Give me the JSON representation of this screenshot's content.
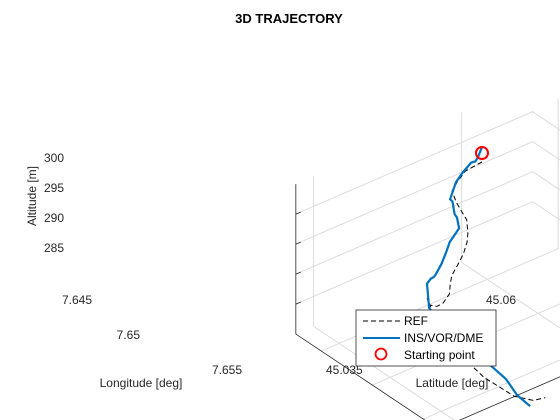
{
  "chart_data": {
    "type": "line",
    "title": "3D TRAJECTORY",
    "xlabel": "Latitude [deg]",
    "ylabel": "Longitude [deg]",
    "zlabel": "Altitude [m]",
    "x_ticks": [
      "45.035",
      "45.06"
    ],
    "y_ticks": [
      "7.645",
      "7.65",
      "7.655"
    ],
    "z_ticks": [
      "285",
      "290",
      "295",
      "300"
    ],
    "grid": true,
    "legend_position": "bottom-right",
    "legend": [
      "REF",
      "INS/VOR/DME",
      "Starting point"
    ],
    "colors": {
      "ref": "#000000",
      "ins": "#0072BD",
      "start": "#FF0000",
      "grid": "#dcdcdc",
      "axis": "#262626"
    },
    "series": [
      {
        "name": "REF",
        "style": "dashed",
        "points": [
          [
            45.06,
            7.6445,
            299
          ],
          [
            45.058,
            7.6449,
            299.6
          ],
          [
            45.056,
            7.6452,
            300.0
          ],
          [
            45.054,
            7.6456,
            299.6
          ],
          [
            45.052,
            7.6462,
            299.5
          ],
          [
            45.051,
            7.6472,
            299.2
          ],
          [
            45.0505,
            7.648,
            298.8
          ],
          [
            45.05,
            7.6488,
            298.5
          ],
          [
            45.049,
            7.6495,
            297.5
          ],
          [
            45.048,
            7.65,
            297.0
          ],
          [
            45.046,
            7.6508,
            296.8
          ],
          [
            45.044,
            7.6514,
            296.5
          ],
          [
            45.042,
            7.652,
            296.3
          ],
          [
            45.0405,
            7.6527,
            296.3
          ],
          [
            45.039,
            7.6535,
            296.2
          ],
          [
            45.037,
            7.654,
            296.0
          ],
          [
            45.0355,
            7.6543,
            296.5
          ],
          [
            45.034,
            7.6544,
            297.5
          ],
          [
            45.0335,
            7.6545,
            299.0
          ],
          [
            45.034,
            7.6548,
            296.5
          ],
          [
            45.036,
            7.6553,
            291.5
          ],
          [
            45.038,
            7.6558,
            288.0
          ],
          [
            45.04,
            7.6563,
            285.0
          ],
          [
            45.0415,
            7.6568,
            283.5
          ],
          [
            45.0425,
            7.6578,
            282.5
          ],
          [
            45.044,
            7.6588,
            282.3
          ],
          [
            45.045,
            7.6594,
            283.0
          ]
        ]
      },
      {
        "name": "INS/VOR/DME",
        "style": "solid",
        "points": [
          [
            45.06,
            7.6445,
            301.5
          ],
          [
            45.059,
            7.6447,
            300.5
          ],
          [
            45.058,
            7.645,
            300.5
          ],
          [
            45.057,
            7.6452,
            301.0
          ],
          [
            45.055,
            7.6455,
            300.5
          ],
          [
            45.053,
            7.646,
            300.3
          ],
          [
            45.051,
            7.6466,
            299.0
          ],
          [
            45.05,
            7.6474,
            300.0
          ],
          [
            45.049,
            7.6482,
            299.2
          ],
          [
            45.048,
            7.649,
            300.0
          ],
          [
            45.047,
            7.6498,
            299.5
          ],
          [
            45.045,
            7.6505,
            300.0
          ],
          [
            45.043,
            7.6512,
            300.5
          ],
          [
            45.041,
            7.652,
            300.5
          ],
          [
            45.039,
            7.6527,
            300.2
          ],
          [
            45.037,
            7.6533,
            300.0
          ],
          [
            45.036,
            7.6537,
            300.5
          ],
          [
            45.035,
            7.654,
            301.0
          ],
          [
            45.034,
            7.6542,
            300.8
          ],
          [
            45.034,
            7.6544,
            297.0
          ],
          [
            45.035,
            7.6546,
            295.0
          ],
          [
            45.037,
            7.655,
            292.5
          ],
          [
            45.039,
            7.6556,
            290.0
          ],
          [
            45.04,
            7.6562,
            288.0
          ],
          [
            45.041,
            7.6568,
            286.5
          ],
          [
            45.042,
            7.6573,
            285.0
          ],
          [
            45.043,
            7.6578,
            282.5
          ],
          [
            45.044,
            7.6585,
            281.0
          ]
        ]
      },
      {
        "name": "Starting point",
        "style": "marker",
        "points": [
          [
            45.06,
            7.6445,
            300.5
          ]
        ]
      }
    ]
  }
}
